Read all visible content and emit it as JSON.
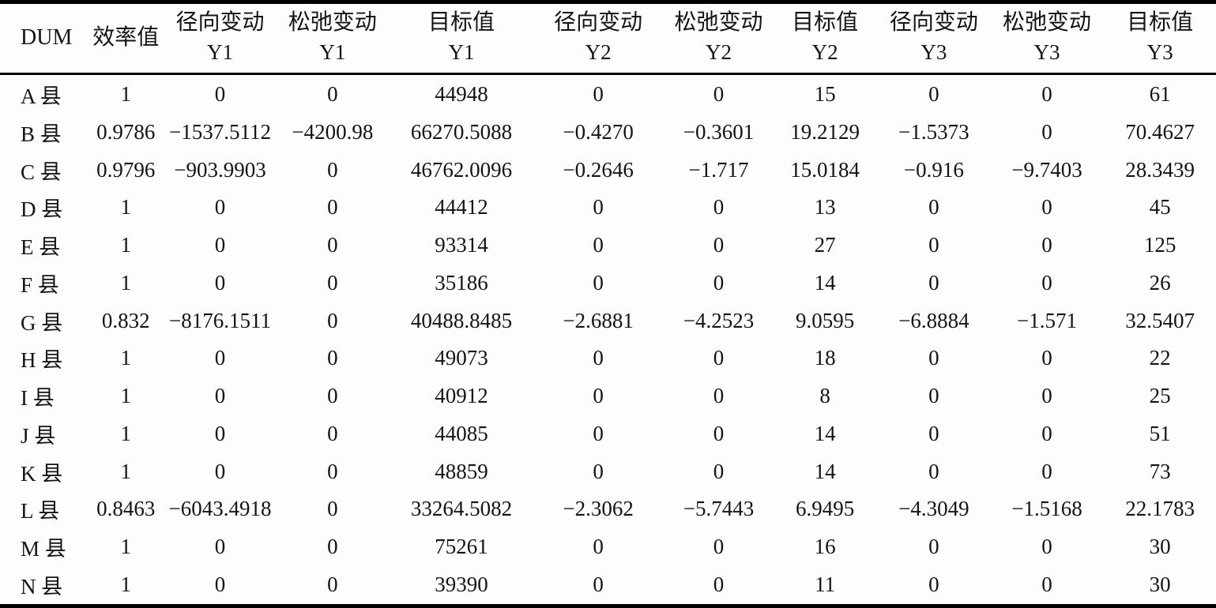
{
  "table": {
    "columns": [
      {
        "label": "DUM",
        "sub": ""
      },
      {
        "label": "效率值",
        "sub": ""
      },
      {
        "label": "径向变动",
        "sub": "Y1"
      },
      {
        "label": "松弛变动",
        "sub": "Y1"
      },
      {
        "label": "目标值",
        "sub": "Y1"
      },
      {
        "label": "径向变动",
        "sub": "Y2"
      },
      {
        "label": "松弛变动",
        "sub": "Y2"
      },
      {
        "label": "目标值",
        "sub": "Y2"
      },
      {
        "label": "径向变动",
        "sub": "Y3"
      },
      {
        "label": "松弛变动",
        "sub": "Y3"
      },
      {
        "label": "目标值",
        "sub": "Y3"
      }
    ],
    "rows": [
      [
        "A 县",
        "1",
        "0",
        "0",
        "44948",
        "0",
        "0",
        "15",
        "0",
        "0",
        "61"
      ],
      [
        "B 县",
        "0.9786",
        "−1537.5112",
        "−4200.98",
        "66270.5088",
        "−0.4270",
        "−0.3601",
        "19.2129",
        "−1.5373",
        "0",
        "70.4627"
      ],
      [
        "C 县",
        "0.9796",
        "−903.9903",
        "0",
        "46762.0096",
        "−0.2646",
        "−1.717",
        "15.0184",
        "−0.916",
        "−9.7403",
        "28.3439"
      ],
      [
        "D 县",
        "1",
        "0",
        "0",
        "44412",
        "0",
        "0",
        "13",
        "0",
        "0",
        "45"
      ],
      [
        "E 县",
        "1",
        "0",
        "0",
        "93314",
        "0",
        "0",
        "27",
        "0",
        "0",
        "125"
      ],
      [
        "F 县",
        "1",
        "0",
        "0",
        "35186",
        "0",
        "0",
        "14",
        "0",
        "0",
        "26"
      ],
      [
        "G 县",
        "0.832",
        "−8176.1511",
        "0",
        "40488.8485",
        "−2.6881",
        "−4.2523",
        "9.0595",
        "−6.8884",
        "−1.571",
        "32.5407"
      ],
      [
        "H 县",
        "1",
        "0",
        "0",
        "49073",
        "0",
        "0",
        "18",
        "0",
        "0",
        "22"
      ],
      [
        "I 县",
        "1",
        "0",
        "0",
        "40912",
        "0",
        "0",
        "8",
        "0",
        "0",
        "25"
      ],
      [
        "J 县",
        "1",
        "0",
        "0",
        "44085",
        "0",
        "0",
        "14",
        "0",
        "0",
        "51"
      ],
      [
        "K 县",
        "1",
        "0",
        "0",
        "48859",
        "0",
        "0",
        "14",
        "0",
        "0",
        "73"
      ],
      [
        "L 县",
        "0.8463",
        "−6043.4918",
        "0",
        "33264.5082",
        "−2.3062",
        "−5.7443",
        "6.9495",
        "−4.3049",
        "−1.5168",
        "22.1783"
      ],
      [
        "M 县",
        "1",
        "0",
        "0",
        "75261",
        "0",
        "0",
        "16",
        "0",
        "0",
        "30"
      ],
      [
        "N 县",
        "1",
        "0",
        "0",
        "39390",
        "0",
        "0",
        "11",
        "0",
        "0",
        "30"
      ]
    ]
  },
  "colors": {
    "text": "#141414",
    "background": "#fdfdfc",
    "border": "#000000"
  },
  "chart_data": {
    "type": "table",
    "title": "",
    "columns": [
      "DUM",
      "效率值",
      "径向变动 Y1",
      "松弛变动 Y1",
      "目标值 Y1",
      "径向变动 Y2",
      "松弛变动 Y2",
      "目标值 Y2",
      "径向变动 Y3",
      "松弛变动 Y3",
      "目标值 Y3"
    ],
    "rows": [
      [
        "A 县",
        1,
        0,
        0,
        44948,
        0,
        0,
        15,
        0,
        0,
        61
      ],
      [
        "B 县",
        0.9786,
        -1537.5112,
        -4200.98,
        66270.5088,
        -0.427,
        -0.3601,
        19.2129,
        -1.5373,
        0,
        70.4627
      ],
      [
        "C 县",
        0.9796,
        -903.9903,
        0,
        46762.0096,
        -0.2646,
        -1.717,
        15.0184,
        -0.916,
        -9.7403,
        28.3439
      ],
      [
        "D 县",
        1,
        0,
        0,
        44412,
        0,
        0,
        13,
        0,
        0,
        45
      ],
      [
        "E 县",
        1,
        0,
        0,
        93314,
        0,
        0,
        27,
        0,
        0,
        125
      ],
      [
        "F 县",
        1,
        0,
        0,
        35186,
        0,
        0,
        14,
        0,
        0,
        26
      ],
      [
        "G 县",
        0.832,
        -8176.1511,
        0,
        40488.8485,
        -2.6881,
        -4.2523,
        9.0595,
        -6.8884,
        -1.571,
        32.5407
      ],
      [
        "H 县",
        1,
        0,
        0,
        49073,
        0,
        0,
        18,
        0,
        0,
        22
      ],
      [
        "I 县",
        1,
        0,
        0,
        40912,
        0,
        0,
        8,
        0,
        0,
        25
      ],
      [
        "J 县",
        1,
        0,
        0,
        44085,
        0,
        0,
        14,
        0,
        0,
        51
      ],
      [
        "K 县",
        1,
        0,
        0,
        48859,
        0,
        0,
        14,
        0,
        0,
        73
      ],
      [
        "L 县",
        0.8463,
        -6043.4918,
        0,
        33264.5082,
        -2.3062,
        -5.7443,
        6.9495,
        -4.3049,
        -1.5168,
        22.1783
      ],
      [
        "M 县",
        1,
        0,
        0,
        75261,
        0,
        0,
        16,
        0,
        0,
        30
      ],
      [
        "N 县",
        1,
        0,
        0,
        39390,
        0,
        0,
        11,
        0,
        0,
        30
      ]
    ]
  }
}
